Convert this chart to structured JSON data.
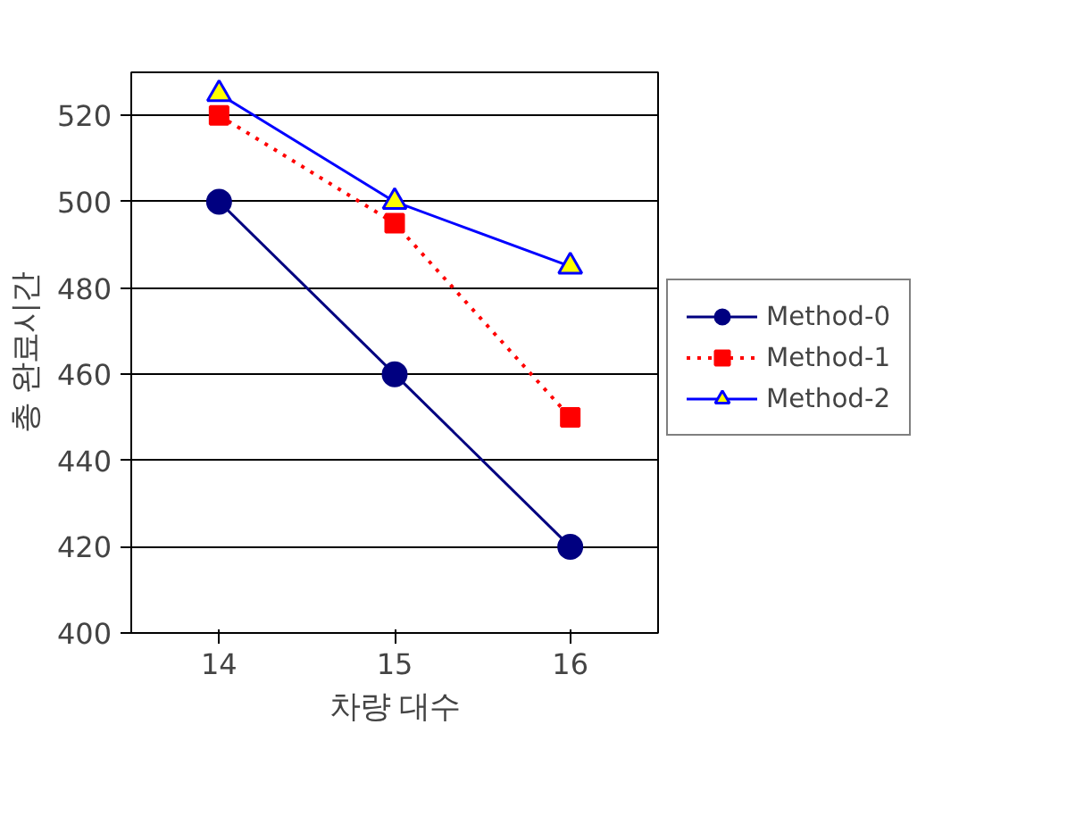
{
  "chart_data": {
    "type": "line",
    "xlabel": "차량 대수",
    "ylabel": "총 완료시간",
    "categories": [
      "14",
      "15",
      "16"
    ],
    "series": [
      {
        "name": "Method-0",
        "color": "#000080",
        "values": [
          500,
          460,
          420
        ],
        "marker": "circle",
        "line_style": "solid"
      },
      {
        "name": "Method-1",
        "color": "#ff0000",
        "values": [
          520,
          495,
          450
        ],
        "marker": "square",
        "line_style": "dotted"
      },
      {
        "name": "Method-2",
        "color": "#0000ff",
        "values": [
          525,
          500,
          485
        ],
        "marker": "triangle",
        "line_style": "solid"
      }
    ],
    "ylim": [
      400,
      530
    ],
    "yticks": [
      400,
      420,
      440,
      460,
      480,
      500,
      520
    ],
    "grid": "y",
    "legend": "right"
  }
}
